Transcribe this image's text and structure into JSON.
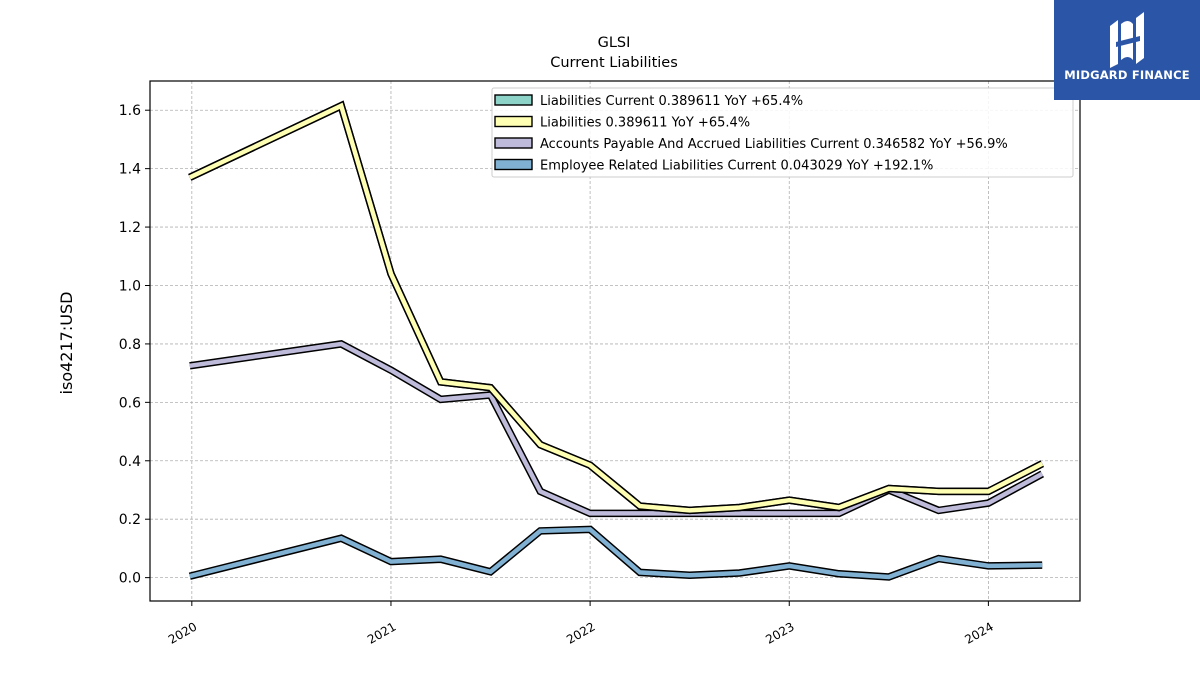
{
  "logo": {
    "text": "MIDGARD FINANCE",
    "icon": "midgard-logo-icon",
    "background": "#2b56a8"
  },
  "chart_data": {
    "type": "line",
    "title": "GLSI",
    "subtitle": "Current  Liabilities",
    "ylabel": "iso4217:USD",
    "xlabel": "",
    "ylim": [
      -0.08,
      1.7
    ],
    "xlim": [
      2019.79,
      2024.46
    ],
    "yticks": [
      0.0,
      0.2,
      0.4,
      0.6,
      0.8,
      1.0,
      1.2,
      1.4,
      1.6
    ],
    "ytick_labels": [
      "0.0",
      "0.2",
      "0.4",
      "0.6",
      "0.8",
      "1.0",
      "1.2",
      "1.4",
      "1.6"
    ],
    "xticks": [
      2020,
      2021,
      2022,
      2023,
      2024
    ],
    "xtick_labels": [
      "2020",
      "2021",
      "2022",
      "2023",
      "2024"
    ],
    "grid": true,
    "legend_position": "top-right",
    "x": [
      2019.99,
      2020.75,
      2021.0,
      2021.25,
      2021.5,
      2021.75,
      2022.0,
      2022.25,
      2022.5,
      2022.75,
      2023.0,
      2023.25,
      2023.5,
      2023.75,
      2024.0,
      2024.27
    ],
    "series": [
      {
        "name": "Liabilities Current  0.389611 YoY +65.4%",
        "color": "#8dd3c7",
        "values": [
          1.37,
          1.615,
          1.04,
          0.67,
          0.65,
          0.455,
          0.385,
          0.245,
          0.23,
          0.24,
          0.265,
          0.24,
          0.305,
          0.295,
          0.295,
          0.39
        ]
      },
      {
        "name": "Liabilities  0.389611 YoY +65.4%",
        "color": "#ffffb3",
        "values": [
          1.37,
          1.615,
          1.04,
          0.67,
          0.65,
          0.455,
          0.385,
          0.245,
          0.23,
          0.24,
          0.265,
          0.24,
          0.305,
          0.295,
          0.295,
          0.39
        ]
      },
      {
        "name": "Accounts Payable And Accrued Liabilities Current  0.346582 YoY +56.9%",
        "color": "#bebada",
        "values": [
          0.725,
          0.8,
          0.71,
          0.61,
          0.625,
          0.295,
          0.22,
          0.22,
          0.22,
          0.22,
          0.22,
          0.22,
          0.3,
          0.23,
          0.255,
          0.355
        ]
      },
      {
        "name": "Employee Related Liabilities Current  0.043029 YoY +192.1%",
        "color": "#80b1d3",
        "values": [
          0.005,
          0.135,
          0.055,
          0.063,
          0.02,
          0.16,
          0.165,
          0.018,
          0.008,
          0.016,
          0.04,
          0.013,
          0.002,
          0.065,
          0.04,
          0.043
        ]
      }
    ]
  }
}
